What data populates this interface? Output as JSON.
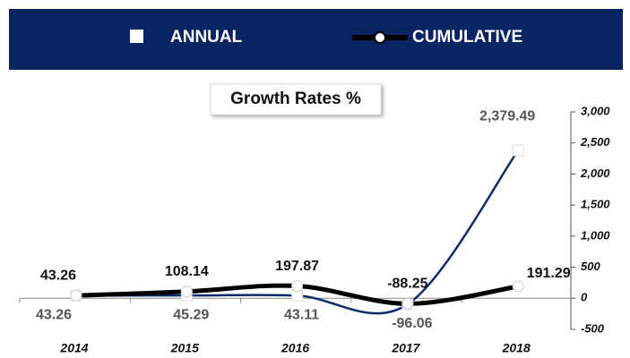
{
  "chart_data": {
    "type": "line",
    "title": "Growth Rates %",
    "categories": [
      "2014",
      "2015",
      "2016",
      "2017",
      "2018"
    ],
    "series": [
      {
        "name": "ANNUAL",
        "color": "#0d2a6b",
        "values": [
          43.26,
          45.29,
          43.11,
          -96.06,
          2379.49
        ],
        "value_labels": [
          "43.26",
          "45.29",
          "43.11",
          "-96.06",
          "2,379.49"
        ]
      },
      {
        "name": "CUMULATIVE",
        "color": "#000000",
        "values": [
          43.26,
          108.14,
          197.87,
          -88.25,
          191.29
        ]
      }
    ],
    "ylim": [
      -500,
      3000
    ],
    "yticks": [
      -500,
      0,
      500,
      {
        "value": 1000,
        "label": "1,000"
      },
      {
        "value": 1500,
        "label": "1,500"
      },
      {
        "value": 2000,
        "label": "2,000"
      },
      {
        "value": 2500,
        "label": "2,500"
      },
      {
        "value": 3000,
        "label": "3,000"
      }
    ],
    "axis_side": "right",
    "legend": "top"
  }
}
